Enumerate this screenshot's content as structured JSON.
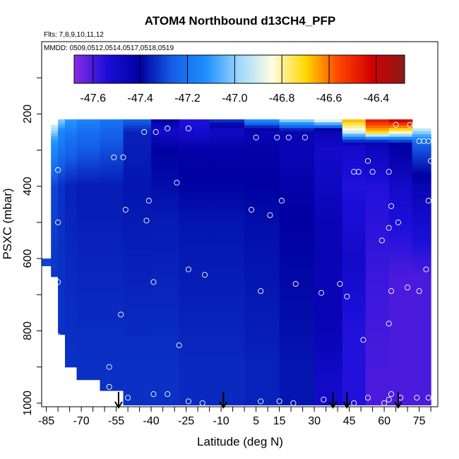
{
  "chart_data": {
    "type": "heatmap",
    "title": "ATOM4 Northbound d13CH4_PFP",
    "flights_label": "Flts: 7,8,9,10,11,12",
    "dates_label": "MMDD: 0509,0512,0514,0517,0518,0519",
    "xlabel": "Latitude (deg N)",
    "ylabel": "PSXC (mbar)",
    "xlim": [
      -87,
      83
    ],
    "ylim": [
      1010,
      0
    ],
    "x_ticks": [
      -85,
      -70,
      -55,
      -40,
      -25,
      -10,
      5,
      15,
      30,
      45,
      60,
      75
    ],
    "x_tick_labels": [
      "-85",
      "-70",
      "-55",
      "-40",
      "-25",
      "-10",
      "5",
      "15",
      "30",
      "45",
      "60",
      "75"
    ],
    "y_ticks": [
      200,
      400,
      600,
      800,
      1000
    ],
    "y_tick_labels": [
      "200",
      "400",
      "600",
      "800",
      "1000"
    ],
    "colorbar": {
      "min": -47.68,
      "max": -46.28,
      "ticks": [
        -47.6,
        -47.4,
        -47.2,
        -47.0,
        -46.8,
        -46.6,
        -46.4
      ],
      "tick_labels": [
        "-47.6",
        "-47.4",
        "-47.2",
        "-47.0",
        "-46.8",
        "-46.6",
        "-46.4"
      ],
      "colors": [
        "#8a2be2",
        "#1a0fd9",
        "#0000a0",
        "#1560e8",
        "#1e90ff",
        "#9fd8ff",
        "#fffde0",
        "#ffd700",
        "#ff4500",
        "#d40000",
        "#8b1a1a"
      ]
    },
    "profile_arrows_lat": [
      -54,
      -9,
      38,
      44,
      66
    ],
    "field": {
      "columns": [
        {
          "lat0": -87,
          "lat1": -83,
          "p_top": 600,
          "p_bot": 620,
          "values": [
            [
              600,
              -47.3
            ]
          ]
        },
        {
          "lat0": -83,
          "lat1": -80,
          "p_top": 230,
          "p_bot": 650,
          "values": [
            [
              230,
              -46.9
            ],
            [
              270,
              -47.1
            ],
            [
              400,
              -47.3
            ],
            [
              600,
              -47.32
            ]
          ]
        },
        {
          "lat0": -80,
          "lat1": -77,
          "p_top": 215,
          "p_bot": 810,
          "values": [
            [
              215,
              -47.0
            ],
            [
              250,
              -47.15
            ],
            [
              400,
              -47.33
            ],
            [
              700,
              -47.33
            ]
          ]
        },
        {
          "lat0": -77,
          "lat1": -72,
          "p_top": 215,
          "p_bot": 900,
          "values": [
            [
              215,
              -47.1
            ],
            [
              260,
              -47.2
            ],
            [
              400,
              -47.35
            ],
            [
              850,
              -47.33
            ]
          ]
        },
        {
          "lat0": -72,
          "lat1": -62,
          "p_top": 215,
          "p_bot": 935,
          "values": [
            [
              215,
              -47.15
            ],
            [
              250,
              -47.22
            ],
            [
              400,
              -47.36
            ],
            [
              900,
              -47.33
            ]
          ]
        },
        {
          "lat0": -62,
          "lat1": -52,
          "p_top": 215,
          "p_bot": 965,
          "values": [
            [
              215,
              -47.2
            ],
            [
              250,
              -47.25
            ],
            [
              400,
              -47.36
            ],
            [
              900,
              -47.33
            ]
          ]
        },
        {
          "lat0": -52,
          "lat1": -40,
          "p_top": 215,
          "p_bot": 1005,
          "values": [
            [
              215,
              -47.25
            ],
            [
              250,
              -47.35
            ],
            [
              400,
              -47.37
            ],
            [
              900,
              -47.33
            ]
          ]
        },
        {
          "lat0": -40,
          "lat1": -28,
          "p_top": 215,
          "p_bot": 1005,
          "values": [
            [
              215,
              -47.4
            ],
            [
              245,
              -47.5
            ],
            [
              300,
              -47.4
            ],
            [
              500,
              -47.36
            ],
            [
              900,
              -47.33
            ]
          ]
        },
        {
          "lat0": -28,
          "lat1": -15,
          "p_top": 215,
          "p_bot": 1005,
          "values": [
            [
              215,
              -47.55
            ],
            [
              245,
              -47.52
            ],
            [
              300,
              -47.42
            ],
            [
              500,
              -47.37
            ],
            [
              900,
              -47.34
            ]
          ]
        },
        {
          "lat0": -15,
          "lat1": 0,
          "p_top": 215,
          "p_bot": 1005,
          "values": [
            [
              215,
              -47.3
            ],
            [
              245,
              -47.5
            ],
            [
              300,
              -47.42
            ],
            [
              500,
              -47.37
            ],
            [
              900,
              -47.34
            ]
          ]
        },
        {
          "lat0": 0,
          "lat1": 15,
          "p_top": 215,
          "p_bot": 1005,
          "values": [
            [
              215,
              -47.1
            ],
            [
              245,
              -47.45
            ],
            [
              300,
              -47.42
            ],
            [
              500,
              -47.38
            ],
            [
              900,
              -47.35
            ]
          ]
        },
        {
          "lat0": 15,
          "lat1": 30,
          "p_top": 215,
          "p_bot": 1005,
          "values": [
            [
              215,
              -46.95
            ],
            [
              250,
              -47.45
            ],
            [
              300,
              -47.45
            ],
            [
              500,
              -47.4
            ],
            [
              900,
              -47.37
            ]
          ]
        },
        {
          "lat0": 30,
          "lat1": 42,
          "p_top": 215,
          "p_bot": 1005,
          "values": [
            [
              215,
              -46.8
            ],
            [
              245,
              -47.45
            ],
            [
              300,
              -47.5
            ],
            [
              500,
              -47.45
            ],
            [
              800,
              -47.45
            ],
            [
              950,
              -47.5
            ]
          ]
        },
        {
          "lat0": 42,
          "lat1": 52,
          "p_top": 215,
          "p_bot": 1005,
          "values": [
            [
              215,
              -46.65
            ],
            [
              250,
              -46.9
            ],
            [
              285,
              -47.5
            ],
            [
              400,
              -47.55
            ],
            [
              600,
              -47.5
            ],
            [
              800,
              -47.55
            ],
            [
              950,
              -47.55
            ]
          ]
        },
        {
          "lat0": 52,
          "lat1": 62,
          "p_top": 215,
          "p_bot": 1005,
          "values": [
            [
              215,
              -46.45
            ],
            [
              250,
              -46.7
            ],
            [
              280,
              -47.45
            ],
            [
              400,
              -47.55
            ],
            [
              650,
              -47.58
            ],
            [
              950,
              -47.6
            ]
          ]
        },
        {
          "lat0": 62,
          "lat1": 72,
          "p_top": 215,
          "p_bot": 1005,
          "values": [
            [
              215,
              -46.35
            ],
            [
              250,
              -46.8
            ],
            [
              280,
              -47.4
            ],
            [
              400,
              -47.5
            ],
            [
              650,
              -47.6
            ],
            [
              950,
              -47.6
            ]
          ]
        },
        {
          "lat0": 72,
          "lat1": 80,
          "p_top": 240,
          "p_bot": 1005,
          "values": [
            [
              240,
              -46.9
            ],
            [
              280,
              -47.25
            ],
            [
              400,
              -47.45
            ],
            [
              650,
              -47.6
            ],
            [
              950,
              -47.6
            ]
          ]
        }
      ]
    },
    "samples": [
      [
        -71,
        205
      ],
      [
        -27,
        205
      ],
      [
        49,
        205
      ],
      [
        55,
        205
      ],
      [
        65,
        230
      ],
      [
        71,
        230
      ],
      [
        76,
        230
      ],
      [
        -43,
        250
      ],
      [
        -38,
        250
      ],
      [
        -33,
        240
      ],
      [
        -24,
        240
      ],
      [
        5,
        265
      ],
      [
        14,
        265
      ],
      [
        19,
        265
      ],
      [
        26,
        265
      ],
      [
        75,
        275
      ],
      [
        77,
        275
      ],
      [
        79,
        275
      ],
      [
        -56,
        320
      ],
      [
        -52,
        320
      ],
      [
        53,
        330
      ],
      [
        47,
        360
      ],
      [
        49,
        360
      ],
      [
        55,
        360
      ],
      [
        62,
        360
      ],
      [
        80,
        330
      ],
      [
        -80,
        355
      ],
      [
        -29,
        390
      ],
      [
        -41,
        440
      ],
      [
        -51,
        465
      ],
      [
        3,
        465
      ],
      [
        11,
        480
      ],
      [
        16,
        440
      ],
      [
        63,
        455
      ],
      [
        62,
        515
      ],
      [
        66,
        500
      ],
      [
        79,
        440
      ],
      [
        59,
        550
      ],
      [
        -80,
        500
      ],
      [
        -42,
        495
      ],
      [
        -24,
        630
      ],
      [
        -17,
        645
      ],
      [
        -39,
        665
      ],
      [
        -80,
        665
      ],
      [
        7,
        690
      ],
      [
        22,
        670
      ],
      [
        33,
        695
      ],
      [
        41,
        670
      ],
      [
        44,
        705
      ],
      [
        63,
        690
      ],
      [
        75,
        690
      ],
      [
        78,
        630
      ],
      [
        70,
        680
      ],
      [
        -53,
        755
      ],
      [
        62,
        780
      ],
      [
        -80,
        815
      ],
      [
        -28,
        840
      ],
      [
        51,
        825
      ],
      [
        -58,
        900
      ],
      [
        -58,
        955
      ],
      [
        -54,
        995
      ],
      [
        -50,
        985
      ],
      [
        -39,
        975
      ],
      [
        -33,
        975
      ],
      [
        -24,
        995
      ],
      [
        -18,
        1000
      ],
      [
        7,
        995
      ],
      [
        15,
        995
      ],
      [
        21,
        1000
      ],
      [
        34,
        990
      ],
      [
        47,
        1000
      ],
      [
        53,
        985
      ],
      [
        62,
        990
      ],
      [
        60,
        1000
      ],
      [
        63,
        975
      ],
      [
        67,
        985
      ],
      [
        74,
        985
      ],
      [
        79,
        985
      ],
      [
        82,
        995
      ]
    ]
  }
}
